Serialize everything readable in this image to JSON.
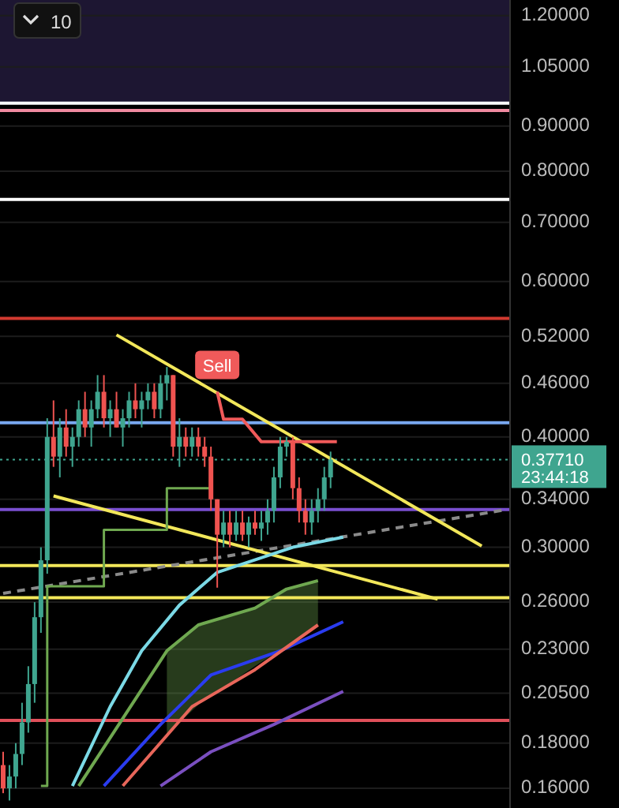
{
  "chart_data": {
    "type": "candlestick",
    "log": "y",
    "grid": "y",
    "tick_labels": "y",
    "categories": [
      null,
      null,
      null,
      null,
      null,
      null,
      null,
      null,
      null,
      null,
      null,
      null,
      null,
      null,
      null,
      null,
      null,
      null,
      null,
      null,
      null,
      null,
      null,
      null,
      null,
      null,
      null,
      null,
      null,
      null,
      null,
      null,
      null,
      null,
      null,
      null,
      null,
      null,
      null,
      null,
      null,
      null,
      null,
      null,
      null,
      null,
      null,
      null,
      null,
      null,
      null,
      null,
      null,
      null,
      null,
      null,
      null,
      null,
      null,
      null,
      null,
      null,
      null,
      null,
      null,
      null,
      null,
      null,
      null,
      null,
      null,
      null,
      null,
      null,
      null,
      null,
      null,
      null,
      null,
      null,
      null
    ],
    "ylim": [
      0.152,
      1.25
    ],
    "yticks": [
      {
        "value": 1.2,
        "label": "1.20000"
      },
      {
        "value": 1.05,
        "label": "1.05000"
      },
      {
        "value": 0.9,
        "label": "0.90000"
      },
      {
        "value": 0.8,
        "label": "0.80000"
      },
      {
        "value": 0.7,
        "label": "0.70000"
      },
      {
        "value": 0.6,
        "label": "0.60000"
      },
      {
        "value": 0.52,
        "label": "0.52000"
      },
      {
        "value": 0.46,
        "label": "0.46000"
      },
      {
        "value": 0.4,
        "label": "0.40000"
      },
      {
        "value": 0.34,
        "label": "0.34000"
      },
      {
        "value": 0.3,
        "label": "0.30000"
      },
      {
        "value": 0.26,
        "label": "0.26000"
      },
      {
        "value": 0.23,
        "label": "0.23000"
      },
      {
        "value": 0.205,
        "label": "0.20500"
      },
      {
        "value": 0.18,
        "label": "0.18000"
      },
      {
        "value": 0.16,
        "label": "0.16000"
      }
    ],
    "ohlc": [
      [
        0.17,
        0.176,
        0.158,
        0.16
      ],
      [
        0.16,
        0.17,
        0.155,
        0.165
      ],
      [
        0.165,
        0.18,
        0.16,
        0.175
      ],
      [
        0.175,
        0.2,
        0.17,
        0.19
      ],
      [
        0.19,
        0.22,
        0.185,
        0.21
      ],
      [
        0.21,
        0.26,
        0.2,
        0.25
      ],
      [
        0.25,
        0.3,
        0.24,
        0.29
      ],
      [
        0.29,
        0.42,
        0.28,
        0.4
      ],
      [
        0.4,
        0.44,
        0.37,
        0.38
      ],
      [
        0.38,
        0.42,
        0.36,
        0.41
      ],
      [
        0.41,
        0.43,
        0.38,
        0.39
      ],
      [
        0.39,
        0.41,
        0.37,
        0.4
      ],
      [
        0.4,
        0.44,
        0.39,
        0.43
      ],
      [
        0.43,
        0.45,
        0.4,
        0.41
      ],
      [
        0.41,
        0.44,
        0.39,
        0.43
      ],
      [
        0.43,
        0.47,
        0.42,
        0.45
      ],
      [
        0.45,
        0.47,
        0.41,
        0.42
      ],
      [
        0.42,
        0.44,
        0.4,
        0.43
      ],
      [
        0.43,
        0.45,
        0.41,
        0.41
      ],
      [
        0.41,
        0.43,
        0.39,
        0.42
      ],
      [
        0.42,
        0.45,
        0.41,
        0.44
      ],
      [
        0.44,
        0.46,
        0.42,
        0.43
      ],
      [
        0.43,
        0.45,
        0.41,
        0.44
      ],
      [
        0.44,
        0.46,
        0.43,
        0.45
      ],
      [
        0.45,
        0.46,
        0.42,
        0.43
      ],
      [
        0.43,
        0.47,
        0.42,
        0.46
      ],
      [
        0.46,
        0.48,
        0.44,
        0.47
      ],
      [
        0.47,
        0.47,
        0.38,
        0.39
      ],
      [
        0.39,
        0.42,
        0.37,
        0.4
      ],
      [
        0.4,
        0.41,
        0.38,
        0.39
      ],
      [
        0.39,
        0.41,
        0.38,
        0.4
      ],
      [
        0.4,
        0.41,
        0.38,
        0.39
      ],
      [
        0.39,
        0.4,
        0.37,
        0.38
      ],
      [
        0.38,
        0.39,
        0.33,
        0.34
      ],
      [
        0.34,
        0.34,
        0.27,
        0.31
      ],
      [
        0.31,
        0.33,
        0.3,
        0.32
      ],
      [
        0.32,
        0.33,
        0.3,
        0.31
      ],
      [
        0.31,
        0.33,
        0.305,
        0.32
      ],
      [
        0.32,
        0.33,
        0.305,
        0.31
      ],
      [
        0.31,
        0.325,
        0.3,
        0.32
      ],
      [
        0.32,
        0.33,
        0.31,
        0.315
      ],
      [
        0.315,
        0.33,
        0.305,
        0.32
      ],
      [
        0.32,
        0.34,
        0.31,
        0.33
      ],
      [
        0.33,
        0.37,
        0.32,
        0.36
      ],
      [
        0.36,
        0.4,
        0.35,
        0.39
      ],
      [
        0.39,
        0.4,
        0.38,
        0.395
      ],
      [
        0.395,
        0.4,
        0.34,
        0.35
      ],
      [
        0.35,
        0.36,
        0.32,
        0.33
      ],
      [
        0.33,
        0.34,
        0.31,
        0.32
      ],
      [
        0.32,
        0.34,
        0.31,
        0.33
      ],
      [
        0.33,
        0.35,
        0.32,
        0.34
      ],
      [
        0.34,
        0.37,
        0.33,
        0.36
      ],
      [
        0.36,
        0.385,
        0.35,
        0.377
      ],
      null,
      null,
      null,
      null,
      null,
      null,
      null,
      null,
      null,
      null,
      null,
      null,
      null,
      null,
      null,
      null,
      null,
      null,
      null,
      null,
      null,
      null,
      null,
      null,
      null,
      null,
      null,
      null
    ],
    "series": [
      {
        "type": "line",
        "color": "#7bd9e6",
        "values": [
          null,
          null,
          null,
          null,
          null,
          null,
          null,
          null,
          null,
          null,
          null,
          0.161,
          null,
          null,
          null,
          null,
          null,
          0.198,
          null,
          null,
          null,
          null,
          0.229,
          null,
          null,
          null,
          null,
          null,
          0.258,
          null,
          null,
          null,
          null,
          null,
          0.281,
          null,
          null,
          null,
          null,
          null,
          null,
          null,
          null,
          null,
          null,
          null,
          0.3,
          null,
          null,
          null,
          null,
          null,
          null,
          null,
          0.308,
          null,
          null,
          null,
          null,
          null,
          null,
          null,
          null,
          null,
          null,
          null,
          null,
          null,
          null,
          null,
          null,
          null,
          null,
          null,
          null,
          null,
          null,
          null,
          null,
          null,
          null
        ]
      },
      {
        "type": "line",
        "color": "#6fa850",
        "values": [
          null,
          null,
          null,
          null,
          null,
          null,
          null,
          null,
          null,
          null,
          null,
          null,
          0.161,
          null,
          null,
          null,
          null,
          null,
          null,
          null,
          null,
          null,
          null,
          null,
          null,
          null,
          0.229,
          null,
          null,
          null,
          null,
          0.245,
          null,
          null,
          null,
          null,
          null,
          null,
          null,
          null,
          0.256,
          null,
          null,
          null,
          null,
          0.269,
          null,
          null,
          null,
          null,
          0.275,
          null,
          null,
          null,
          null,
          null,
          null,
          null,
          null,
          null,
          null,
          null,
          null,
          null,
          null,
          null,
          null,
          null,
          null,
          null,
          null,
          null,
          null,
          null,
          null,
          null,
          null,
          null,
          null,
          null,
          null
        ],
        "lower": [
          null,
          null,
          null,
          null,
          null,
          null,
          null,
          null,
          null,
          null,
          null,
          null,
          null,
          null,
          null,
          null,
          null,
          null,
          null,
          null,
          null,
          null,
          null,
          null,
          null,
          null,
          0.184,
          null,
          null,
          null,
          null,
          0.199,
          null,
          null,
          null,
          null,
          null,
          null,
          null,
          null,
          0.22,
          null,
          null,
          null,
          null,
          0.232,
          null,
          null,
          null,
          null,
          0.245,
          null,
          null,
          null,
          null,
          null,
          null,
          null,
          null,
          null,
          null,
          null,
          null,
          null,
          null,
          null,
          null,
          null,
          null,
          null,
          null,
          null,
          null,
          null,
          null,
          null,
          null,
          null,
          null,
          null,
          null
        ],
        "upper": [
          null,
          null,
          null,
          null,
          null,
          null,
          null,
          null,
          null,
          null,
          null,
          null,
          null,
          null,
          null,
          null,
          null,
          null,
          null,
          null,
          null,
          null,
          null,
          null,
          null,
          null,
          0.229,
          null,
          null,
          null,
          null,
          0.245,
          null,
          null,
          null,
          null,
          null,
          null,
          null,
          null,
          0.256,
          null,
          null,
          null,
          null,
          0.269,
          null,
          null,
          null,
          null,
          0.275,
          null,
          null,
          null,
          null,
          null,
          null,
          null,
          null,
          null,
          null,
          null,
          null,
          null,
          null,
          null,
          null,
          null,
          null,
          null,
          null,
          null,
          null,
          null,
          null,
          null,
          null,
          null,
          null,
          null,
          null
        ]
      },
      {
        "type": "line",
        "color": "#e8665a",
        "values": [
          null,
          null,
          null,
          null,
          null,
          null,
          null,
          null,
          null,
          null,
          null,
          null,
          null,
          null,
          null,
          null,
          null,
          null,
          null,
          0.161,
          null,
          null,
          null,
          null,
          null,
          null,
          null,
          null,
          null,
          null,
          0.198,
          null,
          null,
          null,
          null,
          null,
          null,
          null,
          null,
          null,
          0.218,
          null,
          null,
          null,
          null,
          null,
          null,
          null,
          null,
          null,
          0.245,
          null,
          null,
          null,
          null,
          null,
          null,
          null,
          null,
          null,
          null,
          null,
          null,
          null,
          null,
          null,
          null,
          null,
          null,
          null,
          null,
          null,
          null,
          null,
          null,
          null,
          null,
          null,
          null,
          null,
          null
        ]
      },
      {
        "type": "line",
        "color": "#2a3cf0",
        "values": [
          null,
          null,
          null,
          null,
          null,
          null,
          null,
          null,
          null,
          null,
          null,
          null,
          null,
          null,
          null,
          null,
          0.161,
          null,
          null,
          null,
          null,
          null,
          null,
          null,
          null,
          0.189,
          null,
          null,
          null,
          null,
          null,
          null,
          null,
          0.215,
          null,
          null,
          null,
          null,
          null,
          null,
          null,
          null,
          null,
          null,
          0.229,
          null,
          null,
          null,
          null,
          null,
          null,
          null,
          null,
          null,
          0.247,
          null,
          null,
          null,
          null,
          null,
          null,
          null,
          null,
          null,
          null,
          null,
          null,
          null,
          null,
          null,
          null,
          null,
          null,
          null,
          null,
          null,
          null,
          null,
          null,
          null,
          null
        ]
      },
      {
        "type": "line",
        "color": "#7a4fc0",
        "values": [
          null,
          null,
          null,
          null,
          null,
          null,
          null,
          null,
          null,
          null,
          null,
          null,
          null,
          null,
          null,
          null,
          null,
          null,
          null,
          null,
          null,
          null,
          null,
          null,
          null,
          0.161,
          null,
          null,
          null,
          null,
          null,
          null,
          null,
          0.176,
          null,
          null,
          null,
          null,
          null,
          null,
          null,
          null,
          null,
          0.189,
          null,
          null,
          null,
          null,
          null,
          null,
          null,
          null,
          null,
          null,
          0.206,
          null,
          null,
          null,
          null,
          null,
          null,
          null,
          null,
          null,
          null,
          null,
          null,
          null,
          null,
          null,
          null,
          null,
          null,
          null,
          null,
          null,
          null,
          null,
          null,
          null,
          null
        ]
      },
      {
        "type": "step",
        "color": "#6fa850",
        "values": [
          null,
          null,
          null,
          null,
          null,
          null,
          0.161,
          0.271,
          null,
          null,
          null,
          null,
          null,
          null,
          null,
          null,
          0.314,
          null,
          null,
          null,
          null,
          null,
          null,
          null,
          null,
          null,
          0.35,
          null,
          null,
          null,
          null,
          null,
          null,
          0.35,
          null,
          null,
          null,
          null,
          null,
          null,
          null,
          null,
          null,
          null,
          null,
          null,
          null,
          null,
          null,
          null,
          null,
          null,
          null,
          null,
          null,
          null,
          null,
          null,
          null,
          null,
          null,
          null,
          null,
          null,
          null,
          null,
          null,
          null,
          null,
          null,
          null,
          null,
          null,
          null,
          null,
          null,
          null,
          null,
          null,
          null,
          null
        ]
      },
      {
        "type": "line",
        "name": "Sell",
        "color": "#f05a5a",
        "values": [
          null,
          null,
          null,
          null,
          null,
          null,
          null,
          null,
          null,
          null,
          null,
          null,
          null,
          null,
          null,
          null,
          null,
          null,
          null,
          null,
          null,
          null,
          null,
          null,
          null,
          null,
          null,
          null,
          null,
          null,
          null,
          null,
          null,
          null,
          0.45,
          0.419,
          null,
          null,
          0.419,
          null,
          null,
          0.395,
          null,
          null,
          null,
          null,
          null,
          null,
          null,
          null,
          null,
          null,
          null,
          0.395,
          null,
          null,
          null,
          null,
          null,
          null,
          null,
          null,
          null,
          null,
          null,
          null,
          null,
          null,
          null,
          null,
          null,
          null,
          null,
          null,
          null,
          null,
          null,
          null,
          null,
          null,
          null
        ]
      },
      {
        "type": "line",
        "color": "#f2e75a",
        "values": [
          null,
          null,
          null,
          null,
          null,
          null,
          null,
          null,
          null,
          null,
          null,
          null,
          null,
          null,
          null,
          null,
          null,
          null,
          0.522,
          null,
          null,
          null,
          null,
          null,
          null,
          null,
          null,
          null,
          null,
          null,
          null,
          null,
          null,
          null,
          null,
          null,
          null,
          null,
          null,
          null,
          null,
          null,
          null,
          null,
          null,
          null,
          null,
          null,
          null,
          null,
          null,
          null,
          null,
          null,
          null,
          null,
          null,
          null,
          null,
          null,
          null,
          null,
          null,
          null,
          null,
          null,
          null,
          null,
          null,
          null,
          null,
          null,
          null,
          null,
          null,
          null,
          0.301,
          null,
          null,
          null,
          null
        ]
      },
      {
        "type": "line",
        "color": "#f2e75a",
        "values": [
          null,
          null,
          null,
          null,
          null,
          null,
          null,
          null,
          0.343,
          null,
          null,
          null,
          null,
          null,
          null,
          null,
          null,
          null,
          null,
          null,
          null,
          null,
          null,
          null,
          null,
          null,
          null,
          null,
          null,
          null,
          null,
          null,
          null,
          null,
          null,
          null,
          null,
          null,
          null,
          null,
          null,
          null,
          null,
          null,
          null,
          null,
          null,
          null,
          null,
          null,
          null,
          null,
          null,
          null,
          null,
          null,
          null,
          null,
          null,
          null,
          null,
          null,
          null,
          null,
          null,
          null,
          null,
          null,
          null,
          0.262,
          null,
          null,
          null,
          null,
          null,
          null,
          null,
          null,
          null,
          null,
          null
        ]
      },
      {
        "type": "line",
        "color": "#8a8a8a",
        "line_style": "dashed",
        "values": [
          0.266,
          null,
          null,
          null,
          null,
          null,
          null,
          null,
          null,
          null,
          null,
          null,
          null,
          null,
          null,
          null,
          null,
          null,
          null,
          null,
          null,
          null,
          null,
          null,
          null,
          null,
          null,
          null,
          null,
          null,
          null,
          null,
          null,
          null,
          null,
          null,
          null,
          null,
          null,
          null,
          null,
          null,
          null,
          null,
          null,
          null,
          null,
          null,
          null,
          null,
          null,
          null,
          null,
          null,
          null,
          null,
          null,
          null,
          null,
          null,
          null,
          null,
          null,
          null,
          null,
          null,
          null,
          null,
          null,
          null,
          null,
          null,
          null,
          null,
          null,
          null,
          null,
          null,
          null,
          null,
          0.331
        ]
      }
    ],
    "bands": [
      {
        "axis": "y",
        "from": 0.955,
        "to": 1.25,
        "color": "#1d1632"
      }
    ],
    "ref_lines": [
      {
        "axis": "y",
        "value": 0.955,
        "color": "#ffffff"
      },
      {
        "axis": "y",
        "value": 0.937,
        "color": "#f08aa0"
      },
      {
        "axis": "y",
        "value": 0.743,
        "color": "#ffffff"
      },
      {
        "axis": "y",
        "value": 0.545,
        "color": "#d23a30"
      },
      {
        "axis": "y",
        "value": 0.415,
        "color": "#79a8f0"
      },
      {
        "axis": "y",
        "value": 0.331,
        "color": "#7a4fd0"
      },
      {
        "axis": "y",
        "value": 0.286,
        "color": "#f2e75a"
      },
      {
        "axis": "y",
        "value": 0.263,
        "color": "#f2e75a"
      },
      {
        "axis": "y",
        "value": 0.191,
        "color": "#e0505a"
      },
      {
        "axis": "y",
        "value": 0.3771,
        "label": "0.37710",
        "color": "#3fa58f",
        "line_style": "dotted"
      }
    ],
    "annotations": [
      "23:44:18",
      "10"
    ]
  }
}
